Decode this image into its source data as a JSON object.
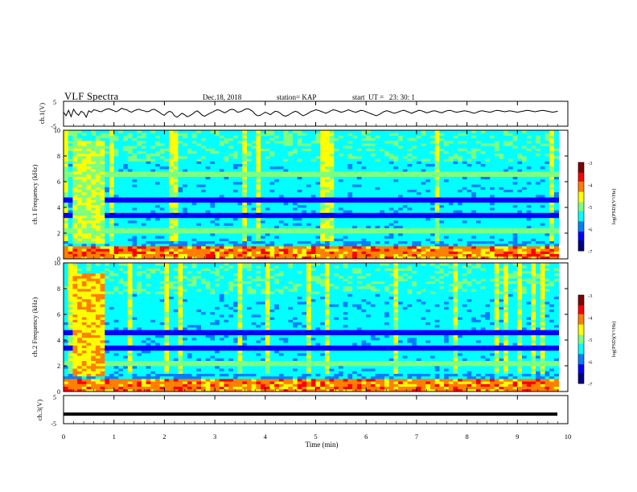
{
  "header": {
    "title": "VLF Spectra",
    "date": "Dec.18, 2018",
    "station": "station= KAP",
    "start": "start  UT =   23: 30: 1"
  },
  "chart_data": [
    {
      "type": "line",
      "name": "ch1-voltage",
      "ylabel": "ch.1(V)",
      "ylim": [
        -5,
        5
      ],
      "yticks": [
        "5",
        "-5"
      ],
      "xlim": [
        0,
        10
      ],
      "note_values": "approximate waveform, values in V sampled every 0.05 min",
      "x_start": 0,
      "x_step": 0.05,
      "y": [
        0.6,
        -0.8,
        1.4,
        -1.2,
        1.8,
        0.2,
        -0.6,
        1.0,
        0.4,
        -1.4,
        1.2,
        0.6,
        1.6,
        1.4,
        1.0,
        0.8,
        1.4,
        1.8,
        2.0,
        1.6,
        1.2,
        0.8,
        1.4,
        2.2,
        1.8,
        1.6,
        1.0,
        0.6,
        1.2,
        1.6,
        1.8,
        1.4,
        1.2,
        0.8,
        1.0,
        1.6,
        1.8,
        1.2,
        0.6,
        -0.2,
        -0.6,
        0.4,
        1.0,
        0.6,
        -0.8,
        -1.4,
        -0.6,
        0.2,
        -0.4,
        -1.2,
        -0.8,
        -0.2,
        0.6,
        1.2,
        0.4,
        -0.6,
        -1.0,
        -0.4,
        0.2,
        0.6,
        1.2,
        1.6,
        1.4,
        0.8,
        0.4,
        1.0,
        1.6,
        1.8,
        1.4,
        0.6,
        0.8,
        1.2,
        1.8,
        2.0,
        1.6,
        1.0,
        -0.2,
        -0.8,
        -0.6,
        0.0,
        0.6,
        0.2,
        -0.4,
        0.4,
        1.0,
        0.8,
        0.2,
        -0.6,
        -1.0,
        -0.6,
        0.0,
        0.6,
        1.0,
        0.6,
        -0.2,
        -0.8,
        -0.4,
        0.2,
        0.8,
        1.2,
        1.6,
        1.4,
        1.0,
        0.6,
        0.2,
        0.6,
        1.2,
        1.6,
        1.4,
        1.0,
        0.6,
        0.8,
        1.2,
        1.6,
        1.2,
        0.8,
        0.6,
        1.0,
        1.4,
        1.2,
        0.8,
        0.4,
        0.0,
        -0.4,
        -0.8,
        -0.4,
        0.2,
        0.8,
        1.2,
        1.0,
        0.6,
        0.2,
        0.4,
        0.8,
        1.2,
        1.4,
        1.0,
        0.6,
        0.2,
        0.6,
        1.0,
        1.4,
        1.2,
        0.8,
        0.4,
        0.6,
        1.0,
        1.2,
        1.0,
        0.6,
        0.4,
        0.8,
        1.2,
        1.4,
        1.2,
        0.8,
        0.6,
        0.8,
        1.0,
        1.2,
        1.0,
        0.8,
        0.4,
        0.2,
        0.6,
        1.0,
        1.2,
        1.0,
        0.8,
        0.6,
        0.8,
        1.2,
        1.4,
        1.2,
        1.0,
        0.8,
        1.0,
        1.2,
        1.0,
        0.8,
        0.6,
        0.8,
        1.0,
        1.2,
        1.4,
        1.2,
        1.0,
        0.8,
        1.0,
        1.2,
        1.4,
        1.2,
        1.0,
        0.8,
        0.6,
        0.8,
        1.0,
        1.2,
        1.0,
        0.8
      ]
    },
    {
      "type": "heatmap",
      "name": "ch1-spectrogram",
      "ylabel": "ch.1 Frequency (kHz)",
      "ylim": [
        0,
        10
      ],
      "yticks": [
        "0",
        "2",
        "4",
        "6",
        "8",
        "10"
      ],
      "xlim": [
        0,
        10
      ],
      "colorbar": {
        "label": "log(PSD)(V²/Hz)",
        "range": [
          -7,
          -3
        ],
        "ticks": [
          "-3",
          "-4",
          "-5",
          "-6",
          "-7"
        ]
      }
    },
    {
      "type": "heatmap",
      "name": "ch2-spectrogram",
      "ylabel": "ch.2 Frequency (kHz)",
      "ylim": [
        0,
        10
      ],
      "yticks": [
        "0",
        "2",
        "4",
        "6",
        "8",
        "10"
      ],
      "xlim": [
        0,
        10
      ],
      "colorbar": {
        "label": "log(PSD)(V²/Hz)",
        "range": [
          -7,
          -3
        ],
        "ticks": [
          "-3",
          "-4",
          "-5",
          "-6",
          "-7"
        ]
      }
    },
    {
      "type": "line",
      "name": "ch3-voltage",
      "ylabel": "ch.3(V)",
      "ylim": [
        -5,
        5
      ],
      "yticks": [
        "5",
        "-5"
      ],
      "x": [
        0,
        10
      ],
      "y": [
        -1.6,
        -1.6
      ]
    }
  ],
  "xaxis": {
    "label": "Time  (min)",
    "ticks": [
      "0",
      "1",
      "2",
      "3",
      "4",
      "5",
      "6",
      "7",
      "8",
      "9",
      "10"
    ]
  },
  "colors": {
    "colormap": [
      "#00007f",
      "#0000ff",
      "#007fff",
      "#00ffff",
      "#7fff7f",
      "#ffff00",
      "#ff7f00",
      "#ff0000",
      "#7f0000"
    ],
    "line": "#000000"
  }
}
